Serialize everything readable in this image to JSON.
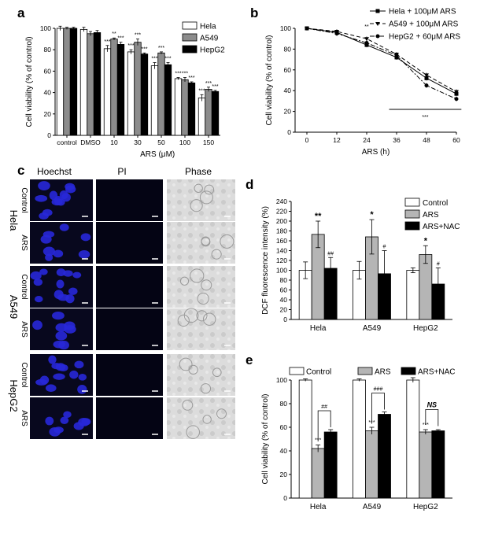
{
  "panels": {
    "a": "a",
    "b": "b",
    "c": "c",
    "d": "d",
    "e": "e"
  },
  "chart_data": [
    {
      "id": "a",
      "type": "bar",
      "ylabel": "Cell viability (% of control)",
      "xlabel": "ARS (μM)",
      "ylim": [
        0,
        100
      ],
      "yticks": [
        "0",
        "20",
        "40",
        "60",
        "80",
        "100"
      ],
      "categories": [
        "control",
        "DMSO",
        "10",
        "30",
        "50",
        "100",
        "150"
      ],
      "series": [
        {
          "name": "Hela",
          "color": "#ffffff",
          "values": [
            100,
            99,
            81,
            78,
            65,
            53,
            35
          ],
          "err": [
            2,
            2,
            3,
            2,
            3,
            1,
            3
          ]
        },
        {
          "name": "A549",
          "color": "#8c8c8c",
          "values": [
            100,
            95,
            90,
            87,
            77,
            52,
            43
          ],
          "err": [
            1,
            2,
            1,
            3,
            1,
            2,
            2
          ]
        },
        {
          "name": "HepG2",
          "color": "#000000",
          "values": [
            100,
            96,
            85,
            76,
            66,
            49,
            41
          ],
          "err": [
            1,
            2,
            2,
            1,
            2,
            1,
            1
          ]
        }
      ],
      "sig": [
        "**",
        "***",
        "**",
        "***",
        "***",
        "***",
        "***"
      ]
    },
    {
      "id": "b",
      "type": "line",
      "ylabel": "Cell viability (% of control)",
      "xlabel": "ARS  (h)",
      "xlim": [
        0,
        60
      ],
      "ylim": [
        0,
        100
      ],
      "xticks": [
        "0",
        "12",
        "24",
        "36",
        "48",
        "60"
      ],
      "yticks": [
        "0",
        "20",
        "40",
        "60",
        "80",
        "100"
      ],
      "x": [
        0,
        12,
        24,
        36,
        48,
        60
      ],
      "series": [
        {
          "name": "Hela + 100μM ARS",
          "marker": "square",
          "dash": "",
          "values": [
            100,
            96,
            84,
            72,
            52,
            37
          ]
        },
        {
          "name": "A549 + 100μM ARS",
          "marker": "triangle",
          "dash": "5,3",
          "values": [
            100,
            97,
            90,
            75,
            55,
            39
          ]
        },
        {
          "name": "HepG2 + 60μM ARS",
          "marker": "circle",
          "dash": "6,2,2,2",
          "values": [
            100,
            95,
            86,
            74,
            45,
            32
          ]
        }
      ],
      "annotations": [
        "**",
        "***"
      ]
    },
    {
      "id": "d",
      "type": "bar",
      "ylabel": "DCF fluorescence intensity (%)",
      "ylim": [
        0,
        240
      ],
      "yticks": [
        "0",
        "20",
        "40",
        "60",
        "80",
        "100",
        "120",
        "140",
        "160",
        "180",
        "200",
        "220",
        "240"
      ],
      "categories": [
        "Hela",
        "A549",
        "HepG2"
      ],
      "series": [
        {
          "name": "Control",
          "color": "#ffffff",
          "values": [
            100,
            100,
            100
          ],
          "err": [
            17,
            18,
            5
          ]
        },
        {
          "name": "ARS",
          "color": "#b5b5b5",
          "values": [
            173,
            168,
            132
          ],
          "err": [
            27,
            35,
            18
          ]
        },
        {
          "name": "ARS+NAC",
          "color": "#000000",
          "values": [
            104,
            93,
            72
          ],
          "err": [
            22,
            47,
            33
          ]
        }
      ],
      "sig_ars": [
        "**",
        "*",
        "*"
      ],
      "sig_nac": [
        "##",
        "#",
        "#"
      ]
    },
    {
      "id": "e",
      "type": "bar",
      "ylabel": "Cell viability (% of control)",
      "ylim": [
        0,
        100
      ],
      "yticks": [
        "0",
        "20",
        "40",
        "60",
        "80",
        "100"
      ],
      "categories": [
        "Hela",
        "A549",
        "HepG2"
      ],
      "series": [
        {
          "name": "Control",
          "color": "#ffffff",
          "values": [
            100,
            100,
            100
          ],
          "err": [
            1,
            1,
            2
          ]
        },
        {
          "name": "ARS",
          "color": "#b5b5b5",
          "values": [
            42,
            57,
            56
          ],
          "err": [
            3,
            3,
            2
          ]
        },
        {
          "name": "ARS+NAC",
          "color": "#000000",
          "values": [
            56,
            71,
            57
          ],
          "err": [
            2,
            2,
            1
          ]
        }
      ],
      "sig_ars": [
        "***",
        "***",
        "***"
      ],
      "sig_cmp": [
        "##",
        "###",
        "NS"
      ]
    }
  ],
  "micrograph": {
    "columns": [
      "Hoechst",
      "PI",
      "Phase"
    ],
    "rows": [
      {
        "group": "Hela",
        "cond": "Control"
      },
      {
        "group": "Hela",
        "cond": "ARS"
      },
      {
        "group": "A549",
        "cond": "Control"
      },
      {
        "group": "A549",
        "cond": "ARS"
      },
      {
        "group": "HepG2",
        "cond": "Control"
      },
      {
        "group": "HepG2",
        "cond": "ARS"
      }
    ],
    "groups": [
      "Hela",
      "A549",
      "HepG2"
    ]
  }
}
